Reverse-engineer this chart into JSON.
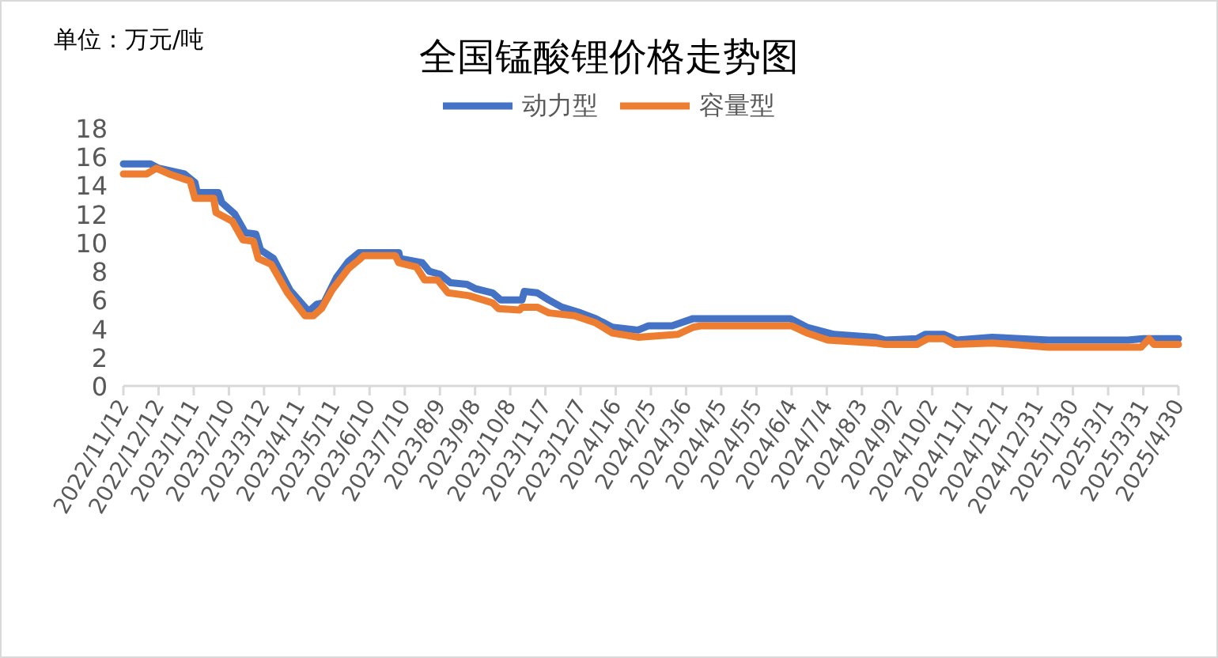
{
  "chart_data": {
    "type": "line",
    "title": "全国锰酸锂价格走势图",
    "annotations": [
      "单位：万元/吨"
    ],
    "legend": "top",
    "ylim": [
      0,
      18
    ],
    "yticks": [
      0,
      2,
      4,
      6,
      8,
      10,
      12,
      14,
      16,
      18
    ],
    "xlim": [
      "2022-11-12",
      "2025-04-30"
    ],
    "xticks": [
      {
        "value": "2022-11-12",
        "label": "2022/11/12"
      },
      {
        "value": "2022-12-12",
        "label": "2022/12/12"
      },
      {
        "value": "2023-01-11",
        "label": "2023/1/11"
      },
      {
        "value": "2023-02-10",
        "label": "2023/2/10"
      },
      {
        "value": "2023-03-12",
        "label": "2023/3/12"
      },
      {
        "value": "2023-04-11",
        "label": "2023/4/11"
      },
      {
        "value": "2023-05-11",
        "label": "2023/5/11"
      },
      {
        "value": "2023-06-10",
        "label": "2023/6/10"
      },
      {
        "value": "2023-07-10",
        "label": "2023/7/10"
      },
      {
        "value": "2023-08-09",
        "label": "2023/8/9"
      },
      {
        "value": "2023-09-08",
        "label": "2023/9/8"
      },
      {
        "value": "2023-10-08",
        "label": "2023/10/8"
      },
      {
        "value": "2023-11-07",
        "label": "2023/11/7"
      },
      {
        "value": "2023-12-07",
        "label": "2023/12/7"
      },
      {
        "value": "2024-01-06",
        "label": "2024/1/6"
      },
      {
        "value": "2024-02-05",
        "label": "2024/2/5"
      },
      {
        "value": "2024-03-06",
        "label": "2024/3/6"
      },
      {
        "value": "2024-04-05",
        "label": "2024/4/5"
      },
      {
        "value": "2024-05-05",
        "label": "2024/5/5"
      },
      {
        "value": "2024-06-04",
        "label": "2024/6/4"
      },
      {
        "value": "2024-07-04",
        "label": "2024/7/4"
      },
      {
        "value": "2024-08-03",
        "label": "2024/8/3"
      },
      {
        "value": "2024-09-02",
        "label": "2024/9/2"
      },
      {
        "value": "2024-10-02",
        "label": "2024/10/2"
      },
      {
        "value": "2024-11-01",
        "label": "2024/11/1"
      },
      {
        "value": "2024-12-01",
        "label": "2024/12/1"
      },
      {
        "value": "2024-12-31",
        "label": "2024/12/31"
      },
      {
        "value": "2025-01-30",
        "label": "2025/1/30"
      },
      {
        "value": "2025-03-01",
        "label": "2025/3/1"
      },
      {
        "value": "2025-03-31",
        "label": "2025/3/31"
      },
      {
        "value": "2025-04-30",
        "label": "2025/4/30"
      }
    ],
    "series": [
      {
        "name": "动力型",
        "color": "#4472c4",
        "x": [
          "2022-11-12",
          "2022-12-05",
          "2022-12-12",
          "2023-01-03",
          "2023-01-12",
          "2023-01-14",
          "2023-02-01",
          "2023-02-04",
          "2023-02-15",
          "2023-02-24",
          "2023-03-05",
          "2023-03-09",
          "2023-03-20",
          "2023-04-03",
          "2023-04-19",
          "2023-04-26",
          "2023-05-02",
          "2023-05-13",
          "2023-05-23",
          "2023-06-01",
          "2023-07-05",
          "2023-07-06",
          "2023-07-25",
          "2023-07-31",
          "2023-08-09",
          "2023-08-18",
          "2023-09-01",
          "2023-09-08",
          "2023-09-23",
          "2023-09-30",
          "2023-10-18",
          "2023-10-20",
          "2023-10-31",
          "2023-11-10",
          "2023-11-21",
          "2023-12-07",
          "2023-12-20",
          "2024-01-03",
          "2024-01-25",
          "2024-02-03",
          "2024-02-23",
          "2024-03-12",
          "2024-06-03",
          "2024-06-17",
          "2024-07-10",
          "2024-08-14",
          "2024-08-23",
          "2024-09-19",
          "2024-09-26",
          "2024-10-12",
          "2024-10-23",
          "2024-11-22",
          "2025-01-09",
          "2025-03-18",
          "2025-03-31",
          "2025-04-30"
        ],
        "values": [
          15.5,
          15.5,
          15.2,
          14.8,
          14.2,
          13.5,
          13.5,
          12.8,
          12.0,
          10.7,
          10.6,
          9.5,
          8.9,
          6.7,
          5.2,
          5.7,
          5.8,
          7.6,
          8.7,
          9.3,
          9.3,
          8.9,
          8.6,
          8.0,
          7.8,
          7.2,
          7.1,
          6.8,
          6.5,
          6.0,
          6.0,
          6.6,
          6.5,
          6.0,
          5.5,
          5.1,
          4.7,
          4.1,
          3.9,
          4.2,
          4.2,
          4.7,
          4.7,
          4.1,
          3.6,
          3.4,
          3.2,
          3.3,
          3.6,
          3.6,
          3.2,
          3.4,
          3.2,
          3.2,
          3.3,
          3.3
        ]
      },
      {
        "name": "容量型",
        "color": "#ed7d31",
        "x": [
          "2022-11-12",
          "2022-12-02",
          "2022-12-10",
          "2022-12-21",
          "2023-01-08",
          "2023-01-12",
          "2023-01-28",
          "2023-01-30",
          "2023-02-13",
          "2023-02-22",
          "2023-03-03",
          "2023-03-07",
          "2023-03-18",
          "2023-04-01",
          "2023-04-16",
          "2023-04-23",
          "2023-04-30",
          "2023-05-09",
          "2023-05-23",
          "2023-06-01",
          "2023-06-05",
          "2023-07-02",
          "2023-07-05",
          "2023-07-20",
          "2023-07-27",
          "2023-08-07",
          "2023-08-16",
          "2023-09-03",
          "2023-09-23",
          "2023-09-28",
          "2023-10-16",
          "2023-10-18",
          "2023-10-31",
          "2023-11-10",
          "2023-12-02",
          "2023-12-20",
          "2024-01-03",
          "2024-01-25",
          "2024-02-28",
          "2024-03-12",
          "2024-03-19",
          "2024-06-04",
          "2024-06-17",
          "2024-07-05",
          "2024-08-14",
          "2024-08-23",
          "2024-09-19",
          "2024-09-28",
          "2024-10-12",
          "2024-10-21",
          "2024-11-22",
          "2025-01-09",
          "2025-03-29",
          "2025-04-05",
          "2025-04-09",
          "2025-04-30"
        ],
        "values": [
          14.8,
          14.8,
          15.2,
          14.8,
          14.3,
          13.1,
          13.1,
          12.1,
          11.5,
          10.2,
          10.1,
          8.9,
          8.5,
          6.5,
          4.9,
          4.9,
          5.4,
          6.7,
          8.2,
          8.8,
          9.1,
          9.1,
          8.6,
          8.3,
          7.4,
          7.4,
          6.5,
          6.3,
          5.8,
          5.4,
          5.3,
          5.5,
          5.5,
          5.1,
          4.9,
          4.4,
          3.7,
          3.4,
          3.6,
          4.1,
          4.2,
          4.2,
          3.7,
          3.2,
          3.0,
          2.9,
          2.9,
          3.3,
          3.3,
          2.9,
          3.0,
          2.7,
          2.7,
          3.3,
          2.9,
          2.9
        ]
      }
    ]
  }
}
